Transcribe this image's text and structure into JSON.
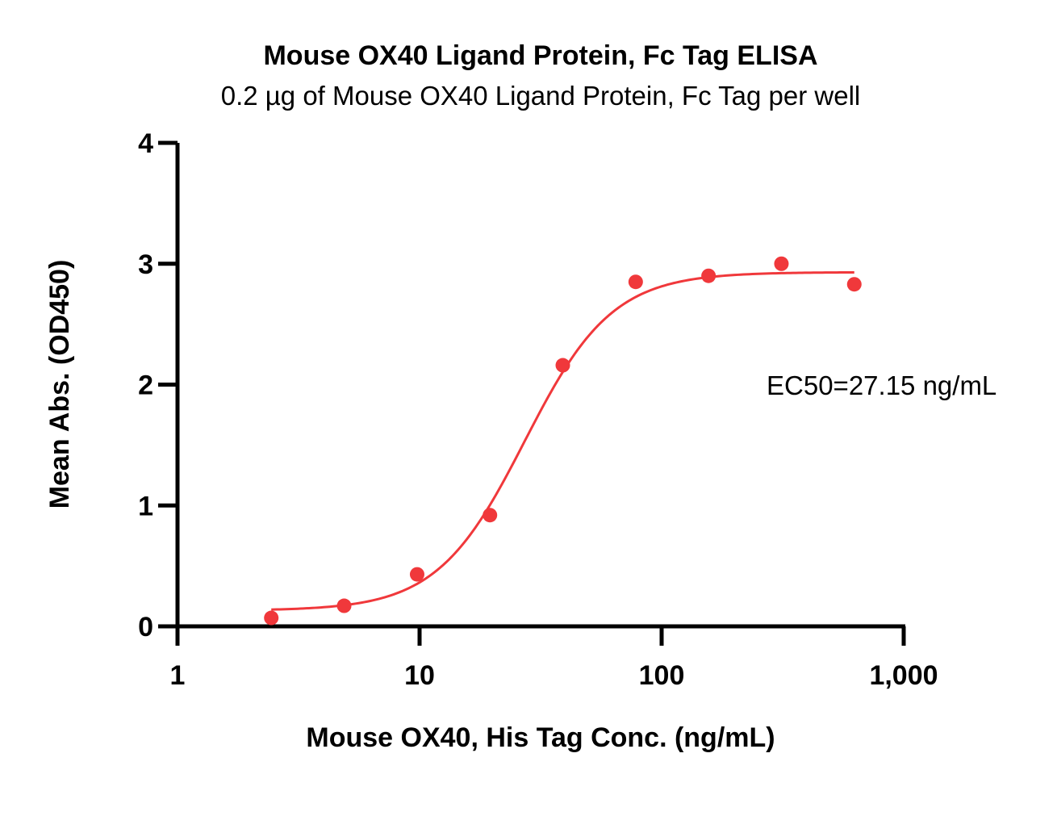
{
  "chart_data": {
    "type": "scatter",
    "title": "Mouse OX40 Ligand Protein, Fc Tag ELISA",
    "subtitle": "0.2 µg of Mouse OX40 Ligand Protein, Fc Tag per well",
    "xlabel": "Mouse OX40, His Tag Conc. (ng/mL)",
    "ylabel": "Mean Abs. (OD450)",
    "x_scale": "log",
    "xlim": [
      1,
      1000
    ],
    "ylim": [
      0,
      4
    ],
    "x_ticks": [
      1,
      10,
      100,
      1000
    ],
    "x_tick_labels": [
      "1",
      "10",
      "100",
      "1,000"
    ],
    "y_ticks": [
      0,
      1,
      2,
      3,
      4
    ],
    "y_tick_labels": [
      "0",
      "1",
      "2",
      "3",
      "4"
    ],
    "grid": false,
    "color": "#f0383b",
    "series": [
      {
        "x": [
          2.44,
          4.88,
          9.77,
          19.53,
          39.06,
          78.13,
          156.25,
          312.5,
          625
        ],
        "y": [
          0.07,
          0.17,
          0.43,
          0.92,
          2.16,
          2.85,
          2.9,
          3.0,
          2.83
        ]
      }
    ],
    "fit": {
      "model": "4PL",
      "bottom": 0.13,
      "top": 2.93,
      "ec50": 27.15,
      "hill": 2.4,
      "x_range": [
        2.44,
        625
      ]
    },
    "annotation": "EC50=27.15 ng/mL"
  }
}
